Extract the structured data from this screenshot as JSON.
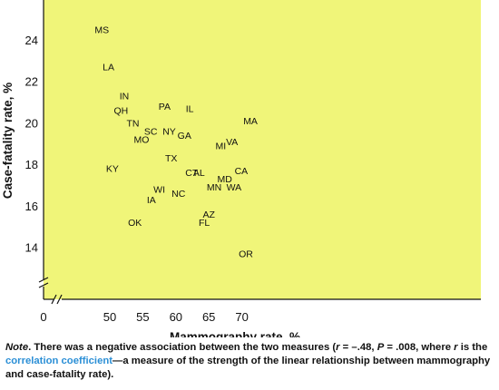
{
  "chart_data": {
    "type": "scatter",
    "title": "",
    "xlabel": "Mammography rate, %",
    "ylabel": "Case-fatality rate, %",
    "xlim": [
      45,
      73
    ],
    "ylim": [
      13,
      25.7
    ],
    "x_axis_floor": 0,
    "y_axis_floor": 0,
    "x_ticks": [
      "0",
      "50",
      "55",
      "60",
      "65",
      "70"
    ],
    "y_ticks": [
      "14",
      "16",
      "18",
      "20",
      "22",
      "24"
    ],
    "axis_break": true,
    "grid": false,
    "background_color": "#f0f579",
    "points": [
      {
        "label": "MS",
        "x": 48.8,
        "y": 24.5
      },
      {
        "label": "LA",
        "x": 49.8,
        "y": 22.7
      },
      {
        "label": "IN",
        "x": 52.2,
        "y": 21.3
      },
      {
        "label": "QH",
        "x": 51.7,
        "y": 20.6
      },
      {
        "label": "TN",
        "x": 53.5,
        "y": 20.0
      },
      {
        "label": "SC",
        "x": 56.2,
        "y": 19.6
      },
      {
        "label": "MO",
        "x": 54.8,
        "y": 19.2
      },
      {
        "label": "KY",
        "x": 50.4,
        "y": 17.8
      },
      {
        "label": "OK",
        "x": 53.8,
        "y": 15.2
      },
      {
        "label": "IA",
        "x": 56.3,
        "y": 16.3
      },
      {
        "label": "WI",
        "x": 57.5,
        "y": 16.8
      },
      {
        "label": "PA",
        "x": 58.3,
        "y": 20.8
      },
      {
        "label": "NY",
        "x": 59.0,
        "y": 19.6
      },
      {
        "label": "TX",
        "x": 59.3,
        "y": 18.3
      },
      {
        "label": "NC",
        "x": 60.4,
        "y": 16.6
      },
      {
        "label": "GA",
        "x": 61.3,
        "y": 19.4
      },
      {
        "label": "IL",
        "x": 62.1,
        "y": 20.7
      },
      {
        "label": "CT",
        "x": 62.4,
        "y": 17.6
      },
      {
        "label": "AL",
        "x": 63.5,
        "y": 17.6
      },
      {
        "label": "FL",
        "x": 64.3,
        "y": 15.2
      },
      {
        "label": "AZ",
        "x": 65.0,
        "y": 15.6
      },
      {
        "label": "MN",
        "x": 65.8,
        "y": 16.9
      },
      {
        "label": "MI",
        "x": 66.8,
        "y": 18.9
      },
      {
        "label": "MD",
        "x": 67.4,
        "y": 17.3
      },
      {
        "label": "VA",
        "x": 68.5,
        "y": 19.1
      },
      {
        "label": "CA",
        "x": 69.9,
        "y": 17.7
      },
      {
        "label": "WA",
        "x": 68.8,
        "y": 16.9
      },
      {
        "label": "MA",
        "x": 71.3,
        "y": 20.1
      },
      {
        "label": "OR",
        "x": 70.6,
        "y": 13.7
      }
    ]
  },
  "note": {
    "label": "Note",
    "text_1": ". There was a negative association between the two measures (",
    "r_symbol": "r",
    "text_2": " = –.48, ",
    "p_symbol": "P",
    "text_3": " = .008, where ",
    "r_symbol_2": "r",
    "text_4": " is the ",
    "link": "correlation coefficient",
    "text_5": "—a measure of the strength of the linear relationship between mammography and case-fatality rate)."
  }
}
